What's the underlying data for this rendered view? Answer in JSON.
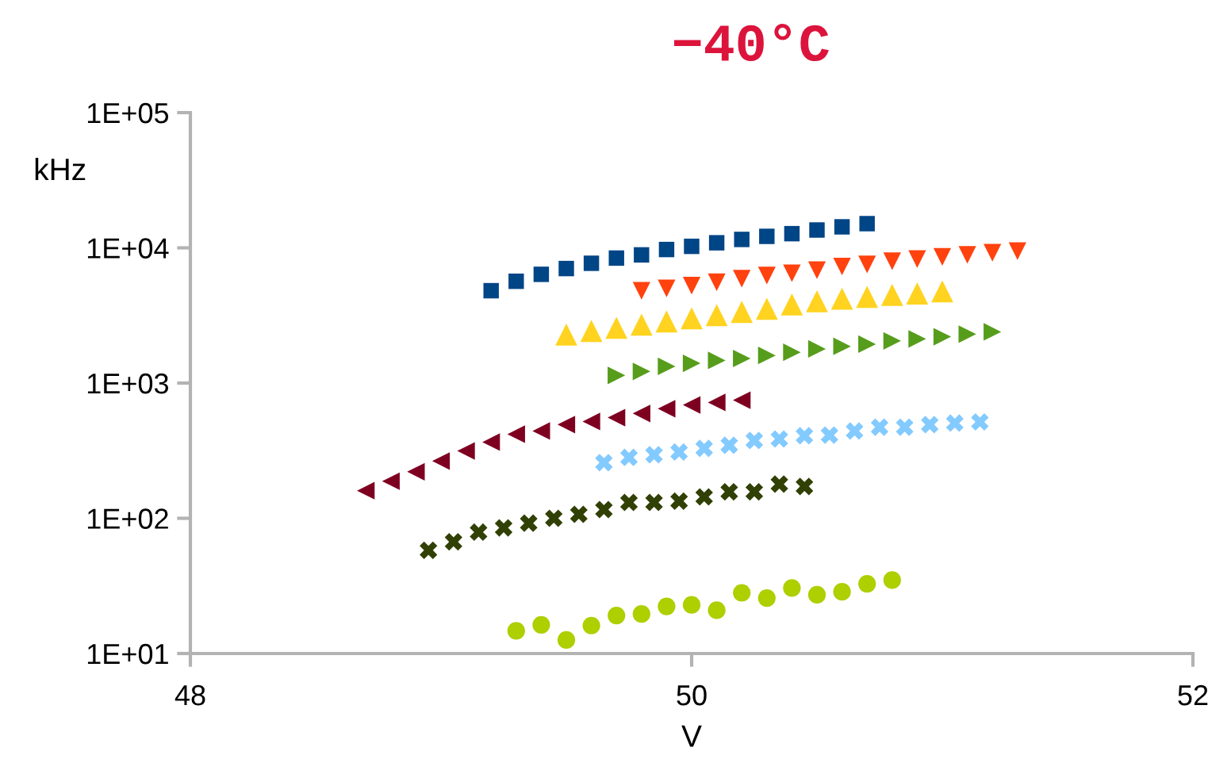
{
  "chart_data": {
    "type": "scatter",
    "title": "−40°C",
    "xlabel": "V",
    "ylabel": "kHz",
    "log": "y",
    "grid": false,
    "xlim": [
      48,
      52
    ],
    "xticks": [
      48,
      50,
      52
    ],
    "ylim": [
      10,
      100000
    ],
    "yticks": [
      {
        "value": 10,
        "label": "1E+01"
      },
      {
        "value": 100,
        "label": "1E+02"
      },
      {
        "value": 1000,
        "label": "1E+03"
      },
      {
        "value": 10000,
        "label": "1E+04"
      },
      {
        "value": 100000,
        "label": "1E+05"
      }
    ],
    "series": [
      {
        "color": "#004586",
        "marker": "square",
        "x": [
          49.2,
          49.3,
          49.4,
          49.5,
          49.6,
          49.7,
          49.8,
          49.9,
          50.0,
          50.1,
          50.2,
          50.3,
          50.4,
          50.5,
          50.6,
          50.7
        ],
        "values": [
          4820,
          5660,
          6370,
          7030,
          7690,
          8400,
          8870,
          9720,
          10260,
          10900,
          11540,
          12160,
          12730,
          13550,
          14300,
          15100
        ]
      },
      {
        "color": "#ff420e",
        "marker": "triangle-down",
        "x": [
          49.8,
          49.9,
          50.0,
          50.1,
          50.2,
          50.3,
          50.4,
          50.5,
          50.6,
          50.7,
          50.8,
          50.9,
          51.0,
          51.1,
          51.2,
          51.3
        ],
        "values": [
          4820,
          5020,
          5260,
          5560,
          5910,
          6240,
          6490,
          6840,
          7280,
          7540,
          7960,
          8260,
          8570,
          8870,
          9200,
          9460
        ]
      },
      {
        "color": "#ffd320",
        "marker": "triangle",
        "x": [
          49.5,
          49.6,
          49.7,
          49.8,
          49.9,
          50.0,
          50.1,
          50.2,
          50.3,
          50.4,
          50.5,
          50.6,
          50.7,
          50.8,
          50.9,
          51.0
        ],
        "values": [
          2280,
          2430,
          2560,
          2700,
          2850,
          3010,
          3180,
          3360,
          3540,
          3810,
          4020,
          4210,
          4330,
          4480,
          4600,
          4760
        ]
      },
      {
        "color": "#579d1c",
        "marker": "triangle-right",
        "x": [
          49.7,
          49.8,
          49.9,
          50.0,
          50.1,
          50.2,
          50.3,
          50.4,
          50.5,
          50.6,
          50.7,
          50.8,
          50.9,
          51.0,
          51.1,
          51.2
        ],
        "values": [
          1140,
          1220,
          1330,
          1400,
          1470,
          1520,
          1600,
          1690,
          1790,
          1870,
          1940,
          2050,
          2120,
          2200,
          2300,
          2390
        ]
      },
      {
        "color": "#7e0021",
        "marker": "triangle-left",
        "x": [
          48.7,
          48.8,
          48.9,
          49.0,
          49.1,
          49.2,
          49.3,
          49.4,
          49.5,
          49.6,
          49.7,
          49.8,
          49.9,
          50.0,
          50.1,
          50.2
        ],
        "values": [
          160,
          188,
          221,
          265,
          315,
          366,
          419,
          442,
          493,
          520,
          555,
          596,
          646,
          689,
          719,
          747
        ]
      },
      {
        "color": "#83caff",
        "marker": "cross",
        "x": [
          49.65,
          49.75,
          49.85,
          49.95,
          50.05,
          50.15,
          50.25,
          50.35,
          50.45,
          50.55,
          50.65,
          50.75,
          50.85,
          50.95,
          51.05,
          51.15
        ],
        "values": [
          258,
          282,
          295,
          309,
          329,
          347,
          376,
          386,
          408,
          412,
          442,
          472,
          472,
          493,
          506,
          516
        ]
      },
      {
        "color": "#314004",
        "marker": "cross",
        "x": [
          48.95,
          49.05,
          49.15,
          49.25,
          49.35,
          49.45,
          49.55,
          49.65,
          49.75,
          49.85,
          49.95,
          50.05,
          50.15,
          50.25,
          50.35,
          50.45
        ],
        "values": [
          58,
          67,
          79,
          85,
          92,
          100,
          107,
          116,
          131,
          131,
          134,
          144,
          157,
          157,
          179,
          172
        ]
      },
      {
        "color": "#aecf00",
        "marker": "circle",
        "x": [
          49.3,
          49.4,
          49.5,
          49.6,
          49.7,
          49.8,
          49.9,
          50.0,
          50.1,
          50.2,
          50.3,
          50.4,
          50.5,
          50.6,
          50.7,
          50.8
        ],
        "values": [
          14.7,
          16.3,
          12.6,
          16.1,
          19.1,
          19.6,
          22.3,
          22.9,
          20.9,
          28.1,
          25.7,
          30.5,
          27.2,
          28.6,
          32.8,
          34.9
        ]
      }
    ]
  }
}
